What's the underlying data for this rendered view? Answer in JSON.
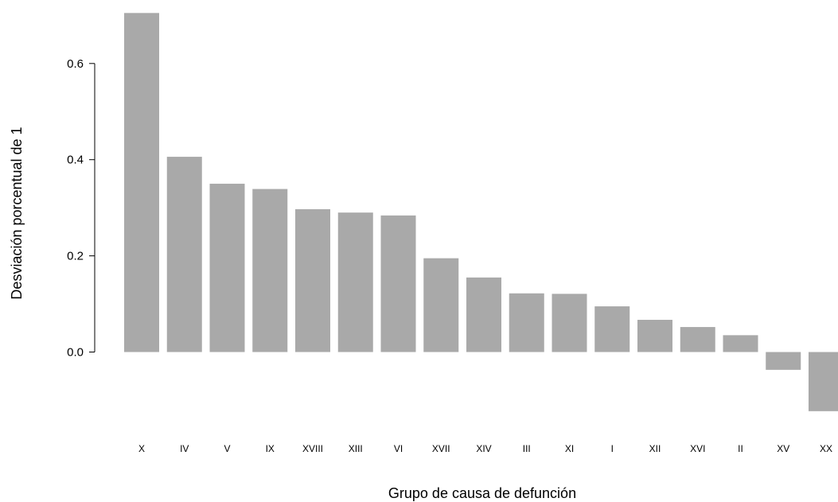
{
  "chart_data": {
    "type": "bar",
    "title": "",
    "xlabel": "Grupo de causa de defunción",
    "ylabel": "Desviación porcentual de 1",
    "categories": [
      "X",
      "IV",
      "V",
      "IX",
      "XVIII",
      "XIII",
      "VI",
      "XVII",
      "XIV",
      "III",
      "XI",
      "I",
      "XII",
      "XVI",
      "II",
      "XV",
      "XX"
    ],
    "values": [
      0.705,
      0.406,
      0.35,
      0.339,
      0.297,
      0.29,
      0.284,
      0.195,
      0.155,
      0.122,
      0.121,
      0.095,
      0.067,
      0.052,
      0.035,
      -0.037,
      -0.123
    ],
    "ylim": [
      -0.123,
      0.705
    ],
    "yticks": [
      0.0,
      0.2,
      0.4,
      0.6
    ],
    "ytick_labels": [
      "0.0",
      "0.2",
      "0.4",
      "0.6"
    ],
    "grid": false,
    "legend": "none",
    "bar_color": "#a9a9a9"
  }
}
